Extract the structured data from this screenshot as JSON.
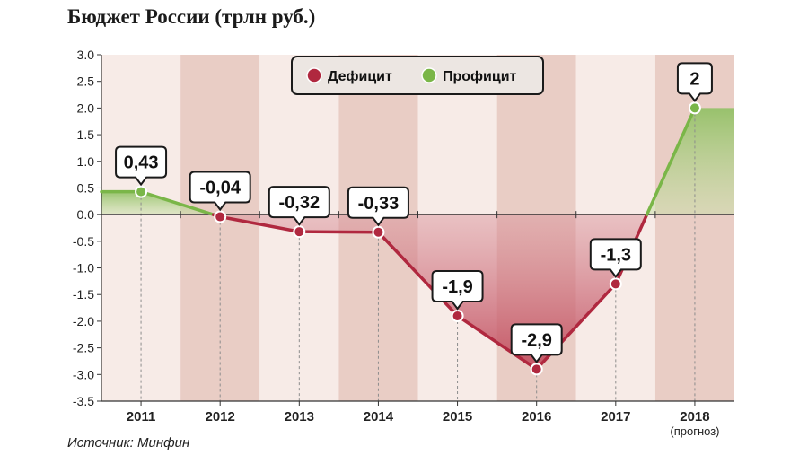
{
  "title": "Бюджет России (трлн руб.)",
  "source": "Источник: Минфин",
  "colors": {
    "deficit": "#b0283f",
    "surplus": "#7ab648",
    "band_light": "#f7ebe7",
    "band_dark": "#e9cdc5"
  },
  "chart_data": {
    "type": "line",
    "title": "Бюджет России (трлн руб.)",
    "categories": [
      "2011",
      "2012",
      "2013",
      "2014",
      "2015",
      "2016",
      "2017",
      "2018"
    ],
    "category_sublabels": [
      "",
      "",
      "",
      "",
      "",
      "",
      "",
      "(прогноз)"
    ],
    "values": [
      0.43,
      -0.04,
      -0.32,
      -0.33,
      -1.9,
      -2.9,
      -1.3,
      2
    ],
    "value_labels": [
      "0,43",
      "-0,04",
      "-0,32",
      "-0,33",
      "-1,9",
      "-2,9",
      "-1,3",
      "2"
    ],
    "ylim": [
      -3.5,
      3.0
    ],
    "yticks": [
      3.0,
      2.5,
      2.0,
      1.5,
      1.0,
      0.5,
      0.0,
      -0.5,
      -1.0,
      -1.5,
      -2.0,
      -2.5,
      -3.0,
      -3.5
    ],
    "ytick_labels": [
      "3.0",
      "2.5",
      "2.0",
      "1.5",
      "1.0",
      "0.5",
      "0.0",
      "-0.5",
      "-1.0",
      "-1.5",
      "-2.0",
      "-2.5",
      "-3.0",
      "-3.5"
    ],
    "legend": {
      "position": "top-center",
      "items": [
        {
          "label": "Дефицит",
          "color": "#b0283f"
        },
        {
          "label": "Профицит",
          "color": "#7ab648"
        }
      ]
    },
    "grid": false
  }
}
